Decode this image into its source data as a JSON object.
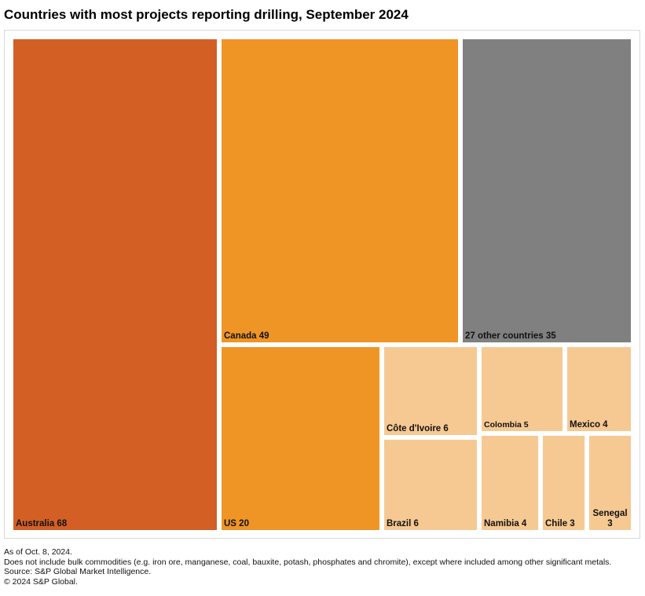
{
  "title": "Countries with most projects reporting drilling, September 2024",
  "chart_data": {
    "type": "treemap",
    "title": "Countries with most projects reporting drilling, September 2024",
    "items": [
      {
        "name": "Australia",
        "value": 68,
        "label": "Australia 68",
        "color": "#D35F25"
      },
      {
        "name": "Canada",
        "value": 49,
        "label": "Canada 49",
        "color": "#EF9526"
      },
      {
        "name": "27 other countries",
        "value": 35,
        "label": "27 other countries 35",
        "color": "#808080"
      },
      {
        "name": "US",
        "value": 20,
        "label": "US 20",
        "color": "#EF9526"
      },
      {
        "name": "Côte d'Ivoire",
        "value": 6,
        "label": "Côte d'Ivoire 6",
        "color": "#F6C993"
      },
      {
        "name": "Brazil",
        "value": 6,
        "label": "Brazil 6",
        "color": "#F6C993"
      },
      {
        "name": "Colombia",
        "value": 5,
        "label": "Colombia 5",
        "color": "#F6C993"
      },
      {
        "name": "Mexico",
        "value": 4,
        "label": "Mexico 4",
        "color": "#F6C993"
      },
      {
        "name": "Namibia",
        "value": 4,
        "label": "Namibia 4",
        "color": "#F6C993"
      },
      {
        "name": "Chile",
        "value": 3,
        "label": "Chile 3",
        "color": "#F6C993"
      },
      {
        "name": "Senegal",
        "value": 3,
        "label": "Senegal\n3",
        "color": "#F6C993"
      }
    ]
  },
  "footnotes": {
    "as_of": "As of Oct. 8, 2024.",
    "note": "Does not include bulk commodities (e.g. iron ore, manganese, coal, bauxite, potash, phosphates and chromite), except where included among other significant metals.",
    "source": "Source: S&P Global Market Intelligence.",
    "copyright": "© 2024 S&P Global."
  }
}
